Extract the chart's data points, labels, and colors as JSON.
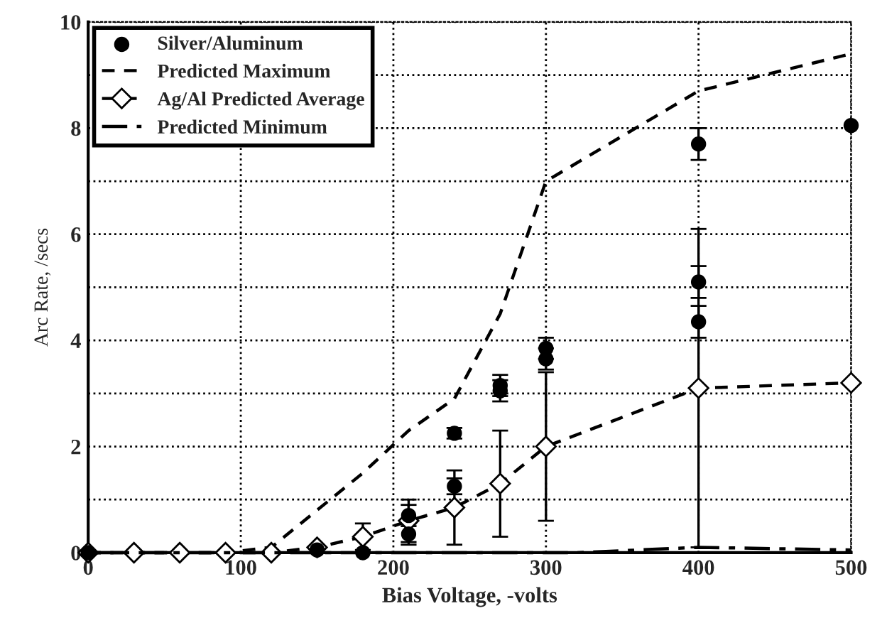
{
  "chart_data": {
    "type": "line",
    "xlabel": "Bias Voltage, -volts",
    "ylabel": "Arc Rate, /secs",
    "xlim": [
      0,
      500
    ],
    "ylim": [
      0,
      10
    ],
    "xticks": [
      0,
      100,
      200,
      300,
      400,
      500
    ],
    "yticks": [
      0,
      {
        "value": 1,
        "label": null
      },
      2,
      {
        "value": 3,
        "label": null
      },
      4,
      {
        "value": 5,
        "label": null
      },
      6,
      {
        "value": 7,
        "label": null
      },
      8,
      {
        "value": 9,
        "label": null
      },
      10
    ],
    "grid": true,
    "legend": "top left",
    "series": [
      {
        "name": "Silver/Aluminum",
        "type": "scatter",
        "color": "#000000",
        "marker": "circle",
        "x": [
          0,
          150,
          180,
          210,
          210,
          240,
          240,
          270,
          270,
          300,
          300,
          400,
          400,
          400,
          500
        ],
        "values": [
          0,
          0.05,
          0,
          0.35,
          0.7,
          1.25,
          2.25,
          3.05,
          3.15,
          3.65,
          3.85,
          4.35,
          5.1,
          7.7,
          8.05
        ],
        "errors": [
          null,
          null,
          null,
          0.2,
          0.2,
          0.15,
          0.1,
          0.2,
          0.2,
          0.2,
          0.2,
          0.3,
          0.3,
          0.3,
          null
        ]
      },
      {
        "name": "Predicted Maximum",
        "color": "#000000",
        "marker": "none",
        "line_style": "dashed",
        "x": [
          0,
          90,
          120,
          150,
          180,
          210,
          240,
          270,
          300,
          400,
          500
        ],
        "values": [
          0,
          0,
          0.1,
          0.8,
          1.5,
          2.3,
          2.9,
          4.5,
          7.0,
          8.7,
          9.4
        ]
      },
      {
        "name": "Ag/Al Predicted Average",
        "color": "#000000",
        "marker": "diamond",
        "line_style": "dashed",
        "x": [
          0,
          30,
          60,
          90,
          120,
          150,
          180,
          210,
          240,
          270,
          300,
          400,
          500
        ],
        "values": [
          0,
          0,
          0,
          0,
          0,
          0.1,
          0.3,
          0.6,
          0.85,
          1.3,
          2.0,
          3.1,
          3.2
        ],
        "errors": [
          null,
          null,
          null,
          null,
          null,
          null,
          0.25,
          0.4,
          0.7,
          1.0,
          1.4,
          3.0,
          null
        ]
      },
      {
        "name": "Predicted Minimum",
        "color": "#000000",
        "marker": "none",
        "line_style": "dashdot",
        "x": [
          0,
          320,
          400,
          500
        ],
        "values": [
          0,
          0,
          0.1,
          0.05
        ]
      }
    ]
  }
}
